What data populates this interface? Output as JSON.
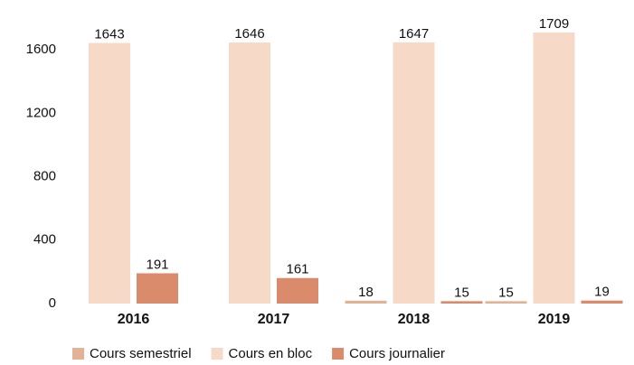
{
  "chart_data": {
    "type": "bar",
    "categories": [
      "2016",
      "2017",
      "2018",
      "2019"
    ],
    "series": [
      {
        "name": "Cours semestriel",
        "color": "#e3b194",
        "values": [
          null,
          null,
          18,
          15
        ]
      },
      {
        "name": "Cours en bloc",
        "color": "#f6dac7",
        "values": [
          1643,
          1646,
          1647,
          1709
        ]
      },
      {
        "name": "Cours journalier",
        "color": "#d98b6b",
        "values": [
          191,
          161,
          15,
          19
        ]
      }
    ],
    "ylim": [
      0,
      1800
    ],
    "yticks": [
      0,
      400,
      800,
      1200,
      1600
    ],
    "legend": "bottom"
  }
}
